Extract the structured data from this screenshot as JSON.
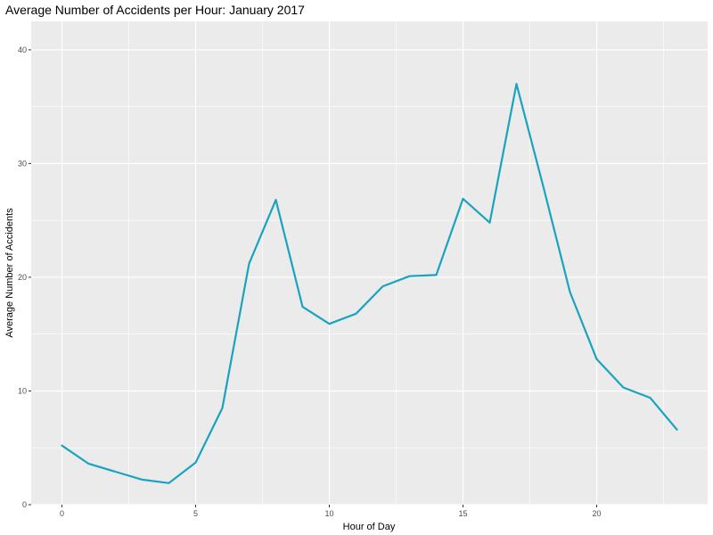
{
  "chart_data": {
    "type": "line",
    "title": "Average Number of Accidents per Hour: January 2017",
    "xlabel": "Hour of Day",
    "ylabel": "Average Number of Accidents",
    "xlim": [
      -1.15,
      24.15
    ],
    "ylim": [
      0,
      42.5
    ],
    "x_ticks": [
      0,
      5,
      10,
      15,
      20
    ],
    "y_ticks": [
      0,
      10,
      20,
      30,
      40
    ],
    "x_tick_labels": [
      "0",
      "5",
      "10",
      "15",
      "20"
    ],
    "y_tick_labels": [
      "0",
      "10",
      "20",
      "30",
      "40"
    ],
    "grid": true,
    "background": "#EBEBEB",
    "gridline_color": "#FFFFFF",
    "line_color": "#1AA3BF",
    "series": [
      {
        "x": [
          0,
          1,
          2,
          3,
          4,
          5,
          6,
          7,
          8,
          9,
          10,
          11,
          12,
          13,
          14,
          15,
          16,
          17,
          18,
          19,
          20,
          21,
          22,
          23
        ],
        "values": [
          5.2,
          3.6,
          2.9,
          2.2,
          1.9,
          3.7,
          8.5,
          21.2,
          26.8,
          17.4,
          15.9,
          16.8,
          19.2,
          20.1,
          20.2,
          26.9,
          24.8,
          37.0,
          28.0,
          18.7,
          12.8,
          10.3,
          9.4,
          6.6
        ]
      }
    ]
  }
}
